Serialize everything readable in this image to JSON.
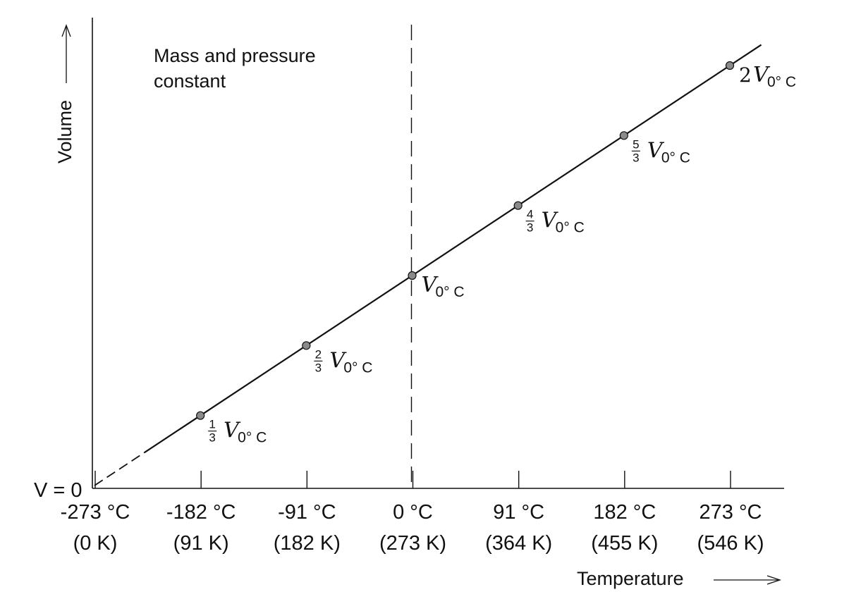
{
  "annotation": [
    "Mass and pressure",
    "constant"
  ],
  "chart_data": {
    "type": "line",
    "xlabel": "Temperature",
    "ylabel": "Volume",
    "y_origin_label": "V = 0",
    "x_ticks": [
      {
        "celsius": "-273 °C",
        "kelvin": "(0 K)",
        "value": -273
      },
      {
        "celsius": "-182 °C",
        "kelvin": "(91 K)",
        "value": -182
      },
      {
        "celsius": "-91 °C",
        "kelvin": "(182 K)",
        "value": -91
      },
      {
        "celsius": "0 °C",
        "kelvin": "(273 K)",
        "value": 0
      },
      {
        "celsius": "91 °C",
        "kelvin": "(364 K)",
        "value": 91
      },
      {
        "celsius": "182 °C",
        "kelvin": "(455 K)",
        "value": 182
      },
      {
        "celsius": "273 °C",
        "kelvin": "(546 K)",
        "value": 273
      }
    ],
    "xlim": [
      -273,
      273
    ],
    "points": [
      {
        "x": -182,
        "y": 0.3333,
        "num": "1",
        "den": "3",
        "coef": ""
      },
      {
        "x": -91,
        "y": 0.6667,
        "num": "2",
        "den": "3",
        "coef": ""
      },
      {
        "x": 0,
        "y": 1.0,
        "num": "",
        "den": "",
        "coef": ""
      },
      {
        "x": 91,
        "y": 1.3333,
        "num": "4",
        "den": "3",
        "coef": ""
      },
      {
        "x": 182,
        "y": 1.6667,
        "num": "5",
        "den": "3",
        "coef": ""
      },
      {
        "x": 273,
        "y": 2.0,
        "num": "",
        "den": "",
        "coef": "2"
      }
    ],
    "point_label_symbol": "V",
    "point_label_subscript": "0° C",
    "extrapolated_segment": {
      "from": -273,
      "to": -230
    },
    "reference_line_x": 0
  },
  "colors": {
    "ink": "#111111",
    "point_fill": "#8a8a8a"
  }
}
